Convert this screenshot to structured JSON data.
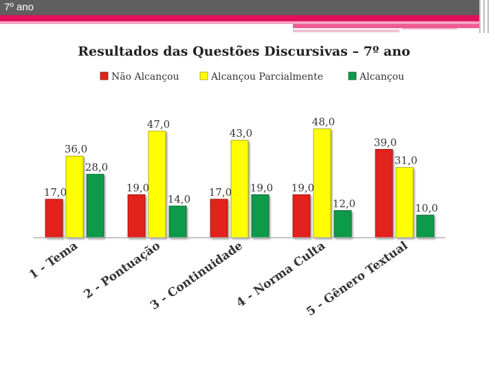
{
  "slide": {
    "title": "7º ano"
  },
  "colors": {
    "header_bg": "#5f5f5f",
    "accent_pink": "#e0105a",
    "series": [
      "#e2231a",
      "#ffff00",
      "#109a4a"
    ]
  },
  "chart_data": {
    "type": "bar",
    "title": "Resultados das Questões Discursivas – 7º ano",
    "xlabel": "",
    "ylabel": "",
    "ylim": [
      0,
      50
    ],
    "grid": false,
    "legend_position": "top",
    "categories": [
      "1 - Tema",
      "2 - Pontuação",
      "3 - Continuidade",
      "4 - Norma Culta",
      "5 - Gênero Textual"
    ],
    "series": [
      {
        "name": "Não Alcançou",
        "values": [
          17.0,
          19.0,
          17.0,
          19.0,
          39.0
        ],
        "labels": [
          "17,0",
          "19,0",
          "17,0",
          "19,0",
          "39,0"
        ]
      },
      {
        "name": "Alcançou Parcialmente",
        "values": [
          36.0,
          47.0,
          43.0,
          48.0,
          31.0
        ],
        "labels": [
          "36,0",
          "47,0",
          "43,0",
          "48,0",
          "31,0"
        ]
      },
      {
        "name": "Alcançou",
        "values": [
          28.0,
          14.0,
          19.0,
          12.0,
          10.0
        ],
        "labels": [
          "28,0",
          "14,0",
          "19,0",
          "12,0",
          "10,0"
        ]
      }
    ]
  }
}
